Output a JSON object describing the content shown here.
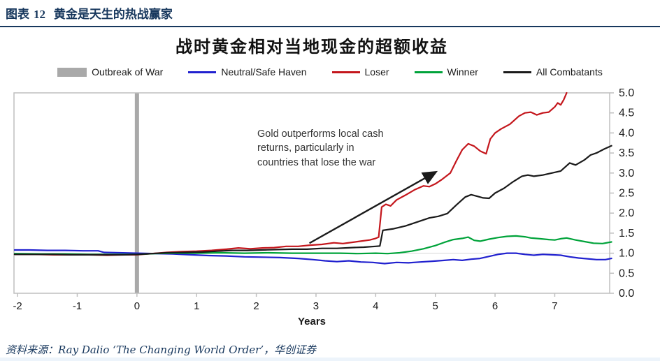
{
  "page": {
    "header": {
      "label": "图表",
      "number": "12",
      "title": "黄金是天生的热战赢家"
    },
    "source_note": "资料来源：Ray Dalio ‘The Changing World Order’，华创证券"
  },
  "colors": {
    "header_navy": "#17375d",
    "axis_gray": "#bfbfbf",
    "war_band_gray": "#a9a9a9",
    "reference_line_gray": "#d6d6d6",
    "neutral_blue": "#2121cf",
    "loser_red": "#c4161c",
    "winner_green": "#00a33a",
    "combatants_black": "#1a1a1a"
  },
  "chart_data": {
    "type": "line",
    "title": "战时黄金相对当地现金的超额收益",
    "xlabel": "Years",
    "ylabel": "",
    "x_range": [
      -2.06,
      7.92
    ],
    "y_range": [
      0,
      5
    ],
    "x_ticks": [
      -2,
      -1,
      0,
      1,
      2,
      3,
      4,
      5,
      6,
      7
    ],
    "y_ticks": [
      "0.0",
      "0.5",
      "1.0",
      "1.5",
      "2.0",
      "2.5",
      "3.0",
      "3.5",
      "4.0",
      "4.5",
      "5.0"
    ],
    "grid": "reference line at y = 1.0 only",
    "legend_position": "top",
    "reference_line_y": 1.0,
    "war_outbreak_year": 0,
    "legend": [
      {
        "label": "Outbreak of War",
        "swatch": "box",
        "color": "#a9a9a9"
      },
      {
        "label": "Neutral/Safe Haven",
        "swatch": "line",
        "color": "#2121cf"
      },
      {
        "label": "Loser",
        "swatch": "line",
        "color": "#c4161c"
      },
      {
        "label": "Winner",
        "swatch": "line",
        "color": "#00a33a"
      },
      {
        "label": "All Combatants",
        "swatch": "line",
        "color": "#1a1a1a"
      }
    ],
    "annotation": {
      "lines": [
        "Gold outperforms local cash",
        "returns, particularly in",
        "countries that lose the war"
      ],
      "arrow": {
        "from": [
          2.89,
          1.25
        ],
        "to": [
          4.99,
          3.01
        ]
      }
    },
    "series": [
      {
        "name": "Neutral/Safe Haven",
        "color": "#2121cf",
        "points": [
          [
            -2.05,
            1.08
          ],
          [
            -1.8,
            1.08
          ],
          [
            -1.5,
            1.07
          ],
          [
            -1.2,
            1.07
          ],
          [
            -0.9,
            1.06
          ],
          [
            -0.65,
            1.06
          ],
          [
            -0.55,
            1.02
          ],
          [
            -0.3,
            1.01
          ],
          [
            0,
            1.0
          ],
          [
            0.3,
            0.99
          ],
          [
            0.6,
            0.98
          ],
          [
            0.9,
            0.96
          ],
          [
            1.2,
            0.94
          ],
          [
            1.5,
            0.93
          ],
          [
            1.8,
            0.91
          ],
          [
            2.1,
            0.9
          ],
          [
            2.4,
            0.89
          ],
          [
            2.7,
            0.87
          ],
          [
            2.95,
            0.84
          ],
          [
            3.15,
            0.81
          ],
          [
            3.35,
            0.79
          ],
          [
            3.55,
            0.81
          ],
          [
            3.75,
            0.78
          ],
          [
            3.95,
            0.77
          ],
          [
            4.15,
            0.74
          ],
          [
            4.35,
            0.77
          ],
          [
            4.55,
            0.76
          ],
          [
            4.75,
            0.78
          ],
          [
            4.95,
            0.8
          ],
          [
            5.15,
            0.82
          ],
          [
            5.3,
            0.84
          ],
          [
            5.45,
            0.82
          ],
          [
            5.6,
            0.85
          ],
          [
            5.75,
            0.87
          ],
          [
            5.9,
            0.92
          ],
          [
            6.05,
            0.97
          ],
          [
            6.2,
            1.0
          ],
          [
            6.35,
            1.0
          ],
          [
            6.5,
            0.97
          ],
          [
            6.65,
            0.95
          ],
          [
            6.8,
            0.97
          ],
          [
            6.95,
            0.96
          ],
          [
            7.1,
            0.95
          ],
          [
            7.25,
            0.91
          ],
          [
            7.4,
            0.88
          ],
          [
            7.55,
            0.86
          ],
          [
            7.7,
            0.84
          ],
          [
            7.85,
            0.84
          ],
          [
            7.95,
            0.87
          ]
        ]
      },
      {
        "name": "Loser",
        "color": "#c4161c",
        "points": [
          [
            -2.05,
            0.97
          ],
          [
            -1.7,
            0.97
          ],
          [
            -1.4,
            0.96
          ],
          [
            -1.1,
            0.96
          ],
          [
            -0.8,
            0.96
          ],
          [
            -0.5,
            0.95
          ],
          [
            -0.2,
            0.96
          ],
          [
            0,
            0.96
          ],
          [
            0.25,
            0.99
          ],
          [
            0.5,
            1.02
          ],
          [
            0.75,
            1.04
          ],
          [
            1.0,
            1.05
          ],
          [
            1.25,
            1.07
          ],
          [
            1.5,
            1.1
          ],
          [
            1.7,
            1.13
          ],
          [
            1.9,
            1.11
          ],
          [
            2.1,
            1.13
          ],
          [
            2.3,
            1.14
          ],
          [
            2.5,
            1.17
          ],
          [
            2.7,
            1.17
          ],
          [
            2.9,
            1.2
          ],
          [
            3.1,
            1.22
          ],
          [
            3.3,
            1.26
          ],
          [
            3.45,
            1.24
          ],
          [
            3.6,
            1.27
          ],
          [
            3.75,
            1.3
          ],
          [
            3.9,
            1.33
          ],
          [
            4.0,
            1.37
          ],
          [
            4.05,
            1.4
          ],
          [
            4.1,
            2.15
          ],
          [
            4.17,
            2.22
          ],
          [
            4.25,
            2.18
          ],
          [
            4.35,
            2.33
          ],
          [
            4.5,
            2.45
          ],
          [
            4.65,
            2.58
          ],
          [
            4.8,
            2.68
          ],
          [
            4.9,
            2.66
          ],
          [
            5.0,
            2.73
          ],
          [
            5.1,
            2.83
          ],
          [
            5.25,
            3.0
          ],
          [
            5.35,
            3.3
          ],
          [
            5.45,
            3.58
          ],
          [
            5.55,
            3.73
          ],
          [
            5.65,
            3.67
          ],
          [
            5.75,
            3.55
          ],
          [
            5.85,
            3.48
          ],
          [
            5.92,
            3.85
          ],
          [
            6.0,
            4.0
          ],
          [
            6.1,
            4.1
          ],
          [
            6.25,
            4.22
          ],
          [
            6.4,
            4.42
          ],
          [
            6.5,
            4.5
          ],
          [
            6.6,
            4.52
          ],
          [
            6.7,
            4.45
          ],
          [
            6.8,
            4.5
          ],
          [
            6.9,
            4.52
          ],
          [
            7.0,
            4.65
          ],
          [
            7.05,
            4.75
          ],
          [
            7.1,
            4.7
          ],
          [
            7.15,
            4.83
          ],
          [
            7.2,
            5.0
          ]
        ]
      },
      {
        "name": "Winner",
        "color": "#00a33a",
        "points": [
          [
            -2.05,
            0.99
          ],
          [
            -1.6,
            0.98
          ],
          [
            -1.2,
            0.98
          ],
          [
            -0.8,
            0.97
          ],
          [
            -0.4,
            0.97
          ],
          [
            0,
            0.97
          ],
          [
            0.3,
            0.99
          ],
          [
            0.6,
            1.0
          ],
          [
            1.0,
            1.0
          ],
          [
            1.4,
            1.01
          ],
          [
            1.8,
            1.0
          ],
          [
            2.2,
            1.01
          ],
          [
            2.6,
            1.0
          ],
          [
            3.0,
            1.0
          ],
          [
            3.4,
            1.0
          ],
          [
            3.7,
            0.99
          ],
          [
            4.0,
            1.0
          ],
          [
            4.2,
            0.99
          ],
          [
            4.4,
            1.01
          ],
          [
            4.6,
            1.05
          ],
          [
            4.8,
            1.11
          ],
          [
            5.0,
            1.19
          ],
          [
            5.15,
            1.27
          ],
          [
            5.3,
            1.34
          ],
          [
            5.45,
            1.37
          ],
          [
            5.55,
            1.4
          ],
          [
            5.65,
            1.32
          ],
          [
            5.75,
            1.3
          ],
          [
            5.9,
            1.35
          ],
          [
            6.05,
            1.39
          ],
          [
            6.2,
            1.42
          ],
          [
            6.35,
            1.43
          ],
          [
            6.5,
            1.41
          ],
          [
            6.6,
            1.38
          ],
          [
            6.75,
            1.36
          ],
          [
            6.9,
            1.34
          ],
          [
            7.0,
            1.33
          ],
          [
            7.1,
            1.36
          ],
          [
            7.2,
            1.38
          ],
          [
            7.35,
            1.33
          ],
          [
            7.5,
            1.29
          ],
          [
            7.65,
            1.25
          ],
          [
            7.8,
            1.24
          ],
          [
            7.95,
            1.28
          ]
        ]
      },
      {
        "name": "All Combatants",
        "color": "#1a1a1a",
        "points": [
          [
            -2.05,
            0.97
          ],
          [
            -1.7,
            0.97
          ],
          [
            -1.4,
            0.97
          ],
          [
            -1.1,
            0.96
          ],
          [
            -0.8,
            0.96
          ],
          [
            -0.5,
            0.96
          ],
          [
            -0.2,
            0.96
          ],
          [
            0,
            0.97
          ],
          [
            0.25,
            0.99
          ],
          [
            0.5,
            1.01
          ],
          [
            0.8,
            1.02
          ],
          [
            1.1,
            1.03
          ],
          [
            1.35,
            1.05
          ],
          [
            1.6,
            1.07
          ],
          [
            1.85,
            1.07
          ],
          [
            2.1,
            1.08
          ],
          [
            2.35,
            1.09
          ],
          [
            2.6,
            1.1
          ],
          [
            2.85,
            1.1
          ],
          [
            3.1,
            1.12
          ],
          [
            3.35,
            1.12
          ],
          [
            3.6,
            1.14
          ],
          [
            3.8,
            1.15
          ],
          [
            4.0,
            1.17
          ],
          [
            4.07,
            1.18
          ],
          [
            4.12,
            1.57
          ],
          [
            4.3,
            1.61
          ],
          [
            4.5,
            1.68
          ],
          [
            4.7,
            1.78
          ],
          [
            4.9,
            1.88
          ],
          [
            5.05,
            1.92
          ],
          [
            5.2,
            1.99
          ],
          [
            5.35,
            2.2
          ],
          [
            5.5,
            2.4
          ],
          [
            5.6,
            2.46
          ],
          [
            5.7,
            2.42
          ],
          [
            5.8,
            2.38
          ],
          [
            5.9,
            2.37
          ],
          [
            6.0,
            2.5
          ],
          [
            6.15,
            2.62
          ],
          [
            6.3,
            2.78
          ],
          [
            6.45,
            2.92
          ],
          [
            6.55,
            2.95
          ],
          [
            6.65,
            2.92
          ],
          [
            6.8,
            2.95
          ],
          [
            6.95,
            3.0
          ],
          [
            7.1,
            3.05
          ],
          [
            7.25,
            3.25
          ],
          [
            7.35,
            3.2
          ],
          [
            7.5,
            3.33
          ],
          [
            7.6,
            3.45
          ],
          [
            7.7,
            3.5
          ],
          [
            7.83,
            3.6
          ],
          [
            7.95,
            3.68
          ]
        ]
      }
    ]
  }
}
